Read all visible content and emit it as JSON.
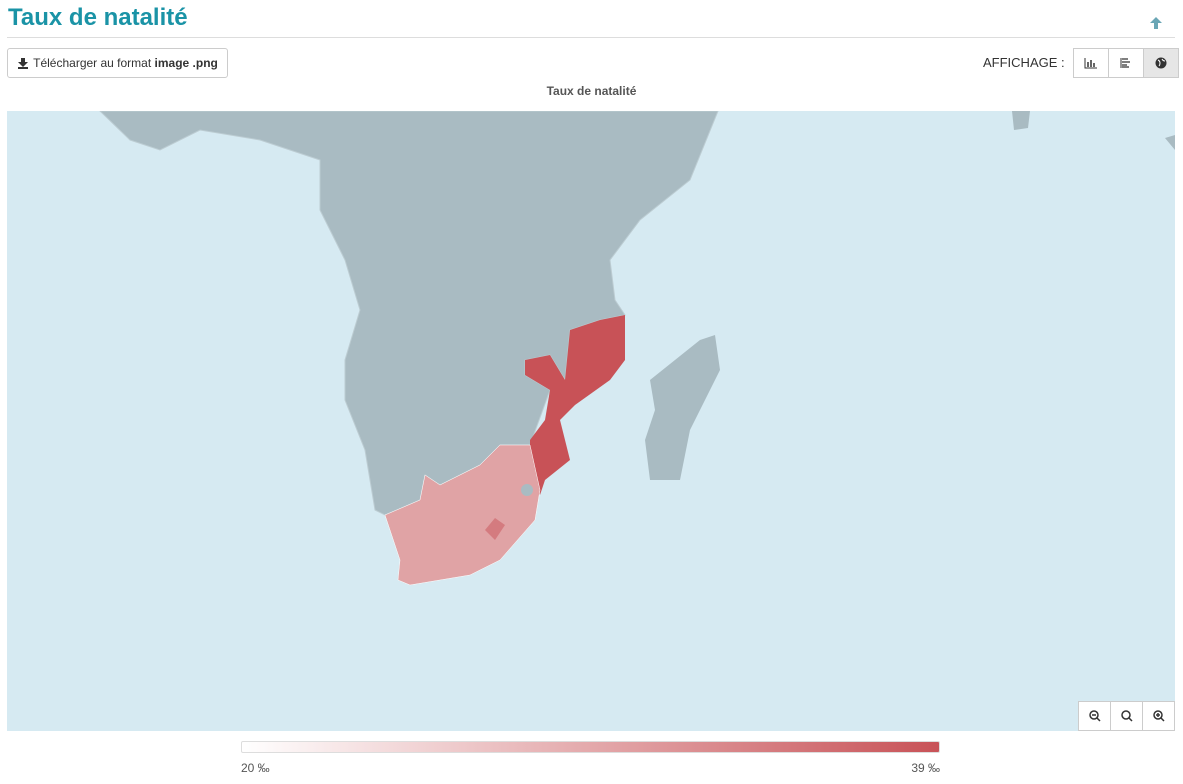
{
  "header": {
    "title": "Taux de natalité"
  },
  "toolbar": {
    "download_text": "Télécharger au format",
    "download_bold": "image .png",
    "display_label": "AFFICHAGE :"
  },
  "map": {
    "title": "Taux de natalité"
  },
  "legend": {
    "min_label": "20 ‰",
    "max_label": "39 ‰"
  }
}
